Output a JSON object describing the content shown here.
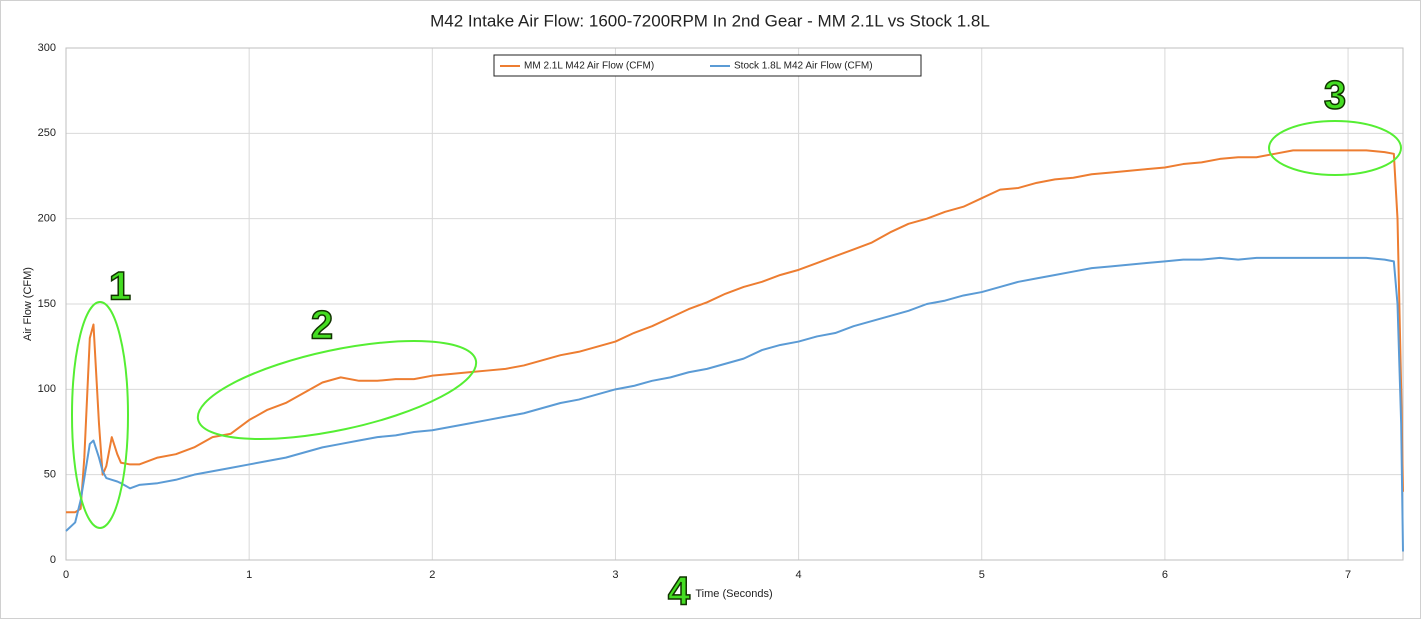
{
  "chart_data": {
    "type": "line",
    "title": "M42 Intake Air Flow: 1600-7200RPM In 2nd Gear - MM 2.1L vs Stock 1.8L",
    "x_label": "Time (Seconds)",
    "y_label": "Air Flow (CFM)",
    "x": [
      0,
      0.05,
      0.08,
      0.1,
      0.13,
      0.15,
      0.18,
      0.2,
      0.22,
      0.25,
      0.28,
      0.3,
      0.35,
      0.4,
      0.5,
      0.6,
      0.7,
      0.8,
      0.9,
      1.0,
      1.1,
      1.2,
      1.3,
      1.4,
      1.5,
      1.6,
      1.7,
      1.8,
      1.9,
      2.0,
      2.1,
      2.2,
      2.3,
      2.4,
      2.5,
      2.6,
      2.7,
      2.8,
      2.9,
      3.0,
      3.1,
      3.2,
      3.3,
      3.4,
      3.5,
      3.6,
      3.7,
      3.8,
      3.9,
      4.0,
      4.1,
      4.2,
      4.3,
      4.4,
      4.5,
      4.6,
      4.7,
      4.8,
      4.9,
      5.0,
      5.1,
      5.2,
      5.3,
      5.4,
      5.5,
      5.6,
      5.7,
      5.8,
      5.9,
      6.0,
      6.1,
      6.2,
      6.3,
      6.4,
      6.5,
      6.6,
      6.7,
      6.8,
      6.9,
      7.0,
      7.1,
      7.2,
      7.25,
      7.27,
      7.29,
      7.3
    ],
    "series": [
      {
        "name": "MM 2.1L M42 Air Flow (CFM)",
        "color": "#ed7d31",
        "values": [
          28,
          28,
          30,
          60,
          130,
          138,
          80,
          50,
          55,
          72,
          62,
          57,
          56,
          56,
          60,
          62,
          66,
          72,
          74,
          82,
          88,
          92,
          98,
          104,
          107,
          105,
          105,
          106,
          106,
          108,
          109,
          110,
          111,
          112,
          114,
          117,
          120,
          122,
          125,
          128,
          133,
          137,
          142,
          147,
          151,
          156,
          160,
          163,
          167,
          170,
          174,
          178,
          182,
          186,
          192,
          197,
          200,
          204,
          207,
          212,
          217,
          218,
          221,
          223,
          224,
          226,
          227,
          228,
          229,
          230,
          232,
          233,
          235,
          236,
          236,
          238,
          240,
          240,
          240,
          240,
          240,
          239,
          238,
          200,
          100,
          40
        ]
      },
      {
        "name": "Stock 1.8L M42 Air Flow (CFM)",
        "color": "#5b9bd5",
        "values": [
          17,
          22,
          35,
          48,
          68,
          70,
          60,
          52,
          48,
          47,
          46,
          45,
          42,
          44,
          45,
          47,
          50,
          52,
          54,
          56,
          58,
          60,
          63,
          66,
          68,
          70,
          72,
          73,
          75,
          76,
          78,
          80,
          82,
          84,
          86,
          89,
          92,
          94,
          97,
          100,
          102,
          105,
          107,
          110,
          112,
          115,
          118,
          123,
          126,
          128,
          131,
          133,
          137,
          140,
          143,
          146,
          150,
          152,
          155,
          157,
          160,
          163,
          165,
          167,
          169,
          171,
          172,
          173,
          174,
          175,
          176,
          176,
          177,
          176,
          177,
          177,
          177,
          177,
          177,
          177,
          177,
          176,
          175,
          150,
          80,
          5
        ]
      }
    ],
    "xlim": [
      0,
      7.3
    ],
    "ylim": [
      0,
      300
    ],
    "xticks": [
      0,
      1,
      2,
      3,
      4,
      5,
      6,
      7
    ],
    "yticks": [
      0,
      50,
      100,
      150,
      200,
      250,
      300
    ],
    "grid": true,
    "legend": "top",
    "annotations": [
      "1",
      "2",
      "3",
      "4"
    ]
  }
}
